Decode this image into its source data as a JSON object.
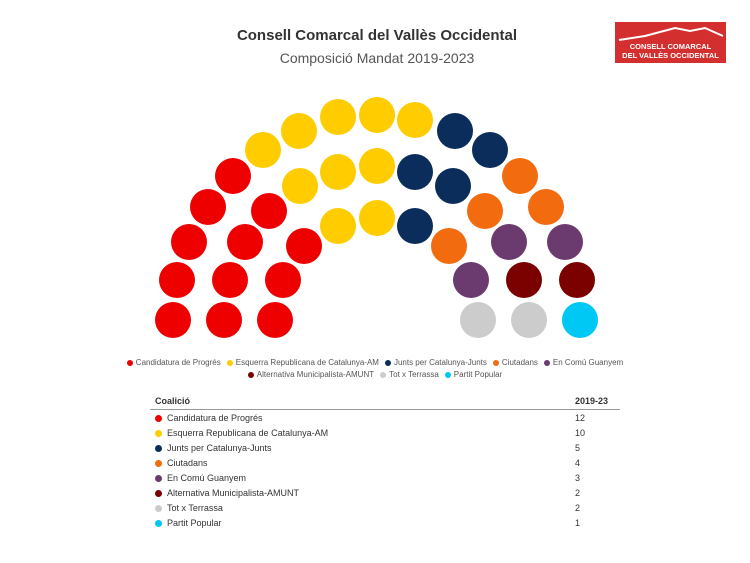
{
  "header": {
    "title": "Consell Comarcal del Vallès Occidental",
    "subtitle": "Composició Mandat 2019-2023",
    "logo_text": "CONSELL COMARCAL DEL VALLÈS OCCIDENTAL"
  },
  "chart_data": {
    "type": "parliament",
    "title": "Consell Comarcal del Vallès Occidental",
    "subtitle": "Composició Mandat 2019-2023",
    "total_seats": 39,
    "legend_position": "bottom",
    "series": [
      {
        "name": "Candidatura de Progrés",
        "value": 12,
        "color": "#ee0000"
      },
      {
        "name": "Esquerra Republicana de Catalunya-AM",
        "value": 10,
        "color": "#ffcc00"
      },
      {
        "name": "Junts per Catalunya-Junts",
        "value": 5,
        "color": "#0b2d5b"
      },
      {
        "name": "Ciutadans",
        "value": 4,
        "color": "#f26b0f"
      },
      {
        "name": "En Comú Guanyem",
        "value": 3,
        "color": "#6b3a6e"
      },
      {
        "name": "Alternativa Municipalista-AMUNT",
        "value": 2,
        "color": "#7b0000"
      },
      {
        "name": "Tot x Terrassa",
        "value": 2,
        "color": "#cccccc"
      },
      {
        "name": "Partit Popular",
        "value": 1,
        "color": "#00c8f5"
      }
    ]
  },
  "table": {
    "col_party": "Coalició",
    "col_seats": "2019-23"
  }
}
